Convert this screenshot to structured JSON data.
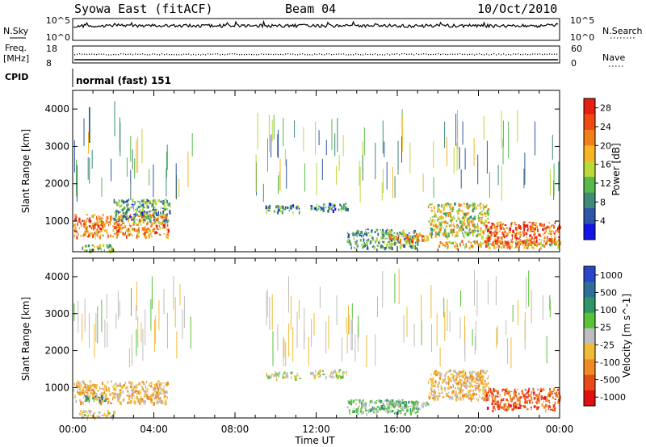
{
  "header": {
    "station": "Syowa East (fitACF)",
    "beam": "Beam 04",
    "date": "10/Oct/2010"
  },
  "top_panels": {
    "nsky_label": "N.Sky",
    "nsearch_label": "N.Search",
    "n_ticks": [
      "10^5",
      "10^0"
    ],
    "freq_label_1": "Freq.",
    "freq_label_2": "[MHz]",
    "freq_ticks": [
      "18",
      "8"
    ],
    "nave_label": "Nave",
    "nave_ticks": [
      "60",
      "0"
    ],
    "cpid_label": "CPID",
    "cpid_value": "normal (fast) 151"
  },
  "colors": {
    "power_scale": [
      "#1414e6",
      "#2f55a8",
      "#3f8a78",
      "#57b84c",
      "#bdd83a",
      "#f5b525",
      "#f27f1a",
      "#ee4a12",
      "#e81e10"
    ],
    "velocity_scale": [
      "#2846c8",
      "#2e6f9a",
      "#2f9467",
      "#58c23a",
      "#bebebe",
      "#f0bc36",
      "#ef8a24",
      "#e84a1a",
      "#e01010"
    ]
  },
  "chart_data": [
    {
      "type": "heatmap",
      "name": "power",
      "xlabel": "",
      "ylabel": "Slant Range [km]",
      "xlim": [
        0,
        24
      ],
      "ylim": [
        180,
        4500
      ],
      "y_ticks": [
        1000,
        2000,
        3000,
        4000
      ],
      "colorbar": {
        "label": "Power [dB]",
        "ticks": [
          "4",
          "8",
          "12",
          "16",
          "20",
          "24",
          "28"
        ],
        "range": [
          0,
          30
        ]
      },
      "echo_regions": [
        {
          "t": [
            0.0,
            4.7
          ],
          "r": [
            600,
            1200
          ],
          "value": 22
        },
        {
          "t": [
            0.3,
            2.0
          ],
          "r": [
            200,
            400
          ],
          "value": 14
        },
        {
          "t": [
            2.0,
            4.8
          ],
          "r": [
            1000,
            1600
          ],
          "value": 10
        },
        {
          "t": [
            9.5,
            11.2
          ],
          "r": [
            1250,
            1450
          ],
          "value": 9
        },
        {
          "t": [
            11.7,
            13.5
          ],
          "r": [
            1300,
            1500
          ],
          "value": 8
        },
        {
          "t": [
            13.5,
            17.0
          ],
          "r": [
            300,
            800
          ],
          "value": 10
        },
        {
          "t": [
            15.5,
            17.5
          ],
          "r": [
            450,
            700
          ],
          "value": 20
        },
        {
          "t": [
            17.5,
            20.5
          ],
          "r": [
            600,
            1500
          ],
          "value": 16
        },
        {
          "t": [
            20.3,
            24.0
          ],
          "r": [
            400,
            1000
          ],
          "value": 24
        },
        {
          "t": [
            18.0,
            24.0
          ],
          "r": [
            300,
            500
          ],
          "value": 18
        }
      ]
    },
    {
      "type": "heatmap",
      "name": "velocity",
      "xlabel": "Time UT",
      "ylabel": "Slant Range [km]",
      "xlim": [
        0,
        24
      ],
      "ylim": [
        180,
        4500
      ],
      "x_ticks": [
        "00:00",
        "04:00",
        "08:00",
        "12:00",
        "16:00",
        "20:00",
        "00:00"
      ],
      "y_ticks": [
        1000,
        2000,
        3000,
        4000
      ],
      "colorbar": {
        "label": "Velocity [m s^-1]",
        "ticks": [
          "1000",
          "500",
          "100",
          "25",
          "-25",
          "-100",
          "-500",
          "-1000"
        ],
        "range": [
          -1000,
          1000
        ]
      },
      "echo_regions": [
        {
          "t": [
            0.0,
            4.7
          ],
          "r": [
            600,
            1200
          ],
          "value": -250
        },
        {
          "t": [
            0.5,
            1.6
          ],
          "r": [
            650,
            800
          ],
          "value": 400
        },
        {
          "t": [
            0.3,
            2.0
          ],
          "r": [
            200,
            400
          ],
          "value": -80
        },
        {
          "t": [
            9.5,
            11.2
          ],
          "r": [
            1250,
            1450
          ],
          "value": 0
        },
        {
          "t": [
            11.7,
            13.5
          ],
          "r": [
            1300,
            1500
          ],
          "value": 0
        },
        {
          "t": [
            13.5,
            17.0
          ],
          "r": [
            300,
            700
          ],
          "value": 200
        },
        {
          "t": [
            15.5,
            17.5
          ],
          "r": [
            450,
            650
          ],
          "value": 150
        },
        {
          "t": [
            17.5,
            20.5
          ],
          "r": [
            700,
            1500
          ],
          "value": -250
        },
        {
          "t": [
            20.3,
            24.0
          ],
          "r": [
            400,
            1000
          ],
          "value": -600
        }
      ]
    }
  ]
}
